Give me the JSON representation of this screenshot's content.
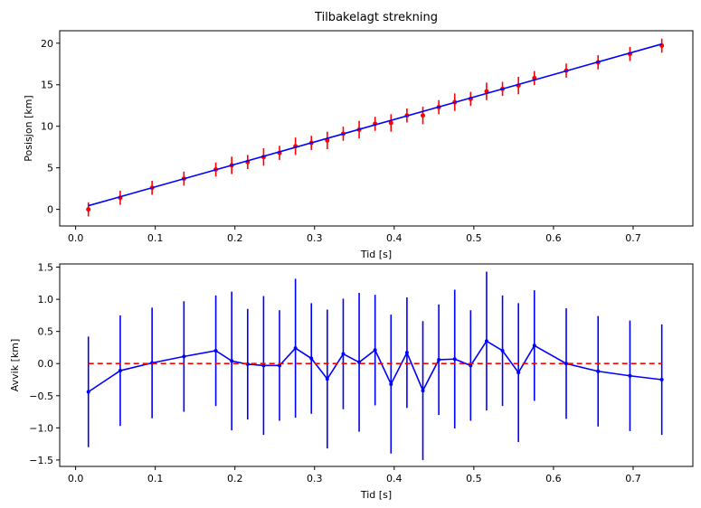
{
  "chart_data": [
    {
      "type": "scatter",
      "title": "Tilbakelagt strekning",
      "xlabel": "Tid [s]",
      "ylabel": "Posisjon [km]",
      "xlim": [
        -0.02,
        0.775
      ],
      "ylim": [
        -2.0,
        21.5
      ],
      "xticks": [
        "0.0",
        "0.1",
        "0.2",
        "0.3",
        "0.4",
        "0.5",
        "0.6",
        "0.7"
      ],
      "xtick_values": [
        0.0,
        0.1,
        0.2,
        0.3,
        0.4,
        0.5,
        0.6,
        0.7
      ],
      "yticks": [
        "0",
        "5",
        "10",
        "15",
        "20"
      ],
      "ytick_values": [
        0,
        5,
        10,
        15,
        20
      ],
      "grid": false,
      "series": [
        {
          "kind": "errorbar-points",
          "color": "#ff0000",
          "x": [
            0.016,
            0.056,
            0.096,
            0.136,
            0.176,
            0.196,
            0.216,
            0.236,
            0.256,
            0.276,
            0.296,
            0.316,
            0.336,
            0.356,
            0.376,
            0.396,
            0.416,
            0.436,
            0.456,
            0.476,
            0.496,
            0.516,
            0.536,
            0.556,
            0.576,
            0.616,
            0.656,
            0.696,
            0.736
          ],
          "y": [
            0.0,
            1.4,
            2.6,
            3.7,
            4.8,
            5.3,
            5.7,
            6.3,
            6.8,
            7.6,
            8.0,
            8.3,
            9.1,
            9.6,
            10.3,
            10.4,
            11.3,
            11.3,
            12.3,
            12.9,
            13.3,
            14.2,
            14.5,
            14.9,
            15.8,
            16.7,
            17.7,
            18.7,
            19.7
          ],
          "yerr": [
            0.85,
            0.85,
            0.85,
            0.85,
            0.85,
            1.05,
            0.85,
            1.05,
            0.85,
            1.05,
            0.85,
            1.05,
            0.85,
            1.05,
            0.85,
            1.05,
            0.85,
            1.05,
            0.85,
            1.05,
            0.85,
            1.05,
            0.85,
            1.05,
            0.85,
            0.85,
            0.85,
            0.85,
            0.85
          ]
        },
        {
          "kind": "line",
          "color": "#0000ff",
          "x": [
            0.016,
            0.736
          ],
          "y": [
            0.44,
            19.9
          ]
        }
      ]
    },
    {
      "type": "line",
      "title": "",
      "xlabel": "Tid [s]",
      "ylabel": "Avvik [km]",
      "xlim": [
        -0.02,
        0.775
      ],
      "ylim": [
        -1.6,
        1.55
      ],
      "xticks": [
        "0.0",
        "0.1",
        "0.2",
        "0.3",
        "0.4",
        "0.5",
        "0.6",
        "0.7"
      ],
      "xtick_values": [
        0.0,
        0.1,
        0.2,
        0.3,
        0.4,
        0.5,
        0.6,
        0.7
      ],
      "yticks": [
        "−1.5",
        "−1.0",
        "−0.5",
        "0.0",
        "0.5",
        "1.0",
        "1.5"
      ],
      "ytick_values": [
        -1.5,
        -1.0,
        -0.5,
        0.0,
        0.5,
        1.0,
        1.5
      ],
      "grid": false,
      "series": [
        {
          "kind": "errorbar-line",
          "color": "#0000ff",
          "x": [
            0.016,
            0.056,
            0.096,
            0.136,
            0.176,
            0.196,
            0.216,
            0.236,
            0.256,
            0.276,
            0.296,
            0.316,
            0.336,
            0.356,
            0.376,
            0.396,
            0.416,
            0.436,
            0.456,
            0.476,
            0.496,
            0.516,
            0.536,
            0.556,
            0.576,
            0.616,
            0.656,
            0.696,
            0.736
          ],
          "y": [
            -0.44,
            -0.11,
            0.01,
            0.11,
            0.2,
            0.04,
            -0.01,
            -0.03,
            -0.03,
            0.24,
            0.08,
            -0.24,
            0.15,
            0.02,
            0.21,
            -0.32,
            0.17,
            -0.42,
            0.06,
            0.07,
            -0.03,
            0.35,
            0.2,
            -0.14,
            0.28,
            0.0,
            -0.12,
            -0.19,
            -0.25
          ],
          "yerr": [
            0.86,
            0.86,
            0.86,
            0.86,
            0.86,
            1.08,
            0.86,
            1.08,
            0.86,
            1.08,
            0.86,
            1.08,
            0.86,
            1.08,
            0.86,
            1.08,
            0.86,
            1.08,
            0.86,
            1.08,
            0.86,
            1.08,
            0.86,
            1.08,
            0.86,
            0.86,
            0.86,
            0.86,
            0.86
          ]
        },
        {
          "kind": "dashed-line",
          "color": "#ff0000",
          "x": [
            0.016,
            0.736
          ],
          "y": [
            0.0,
            0.0
          ]
        }
      ]
    }
  ]
}
